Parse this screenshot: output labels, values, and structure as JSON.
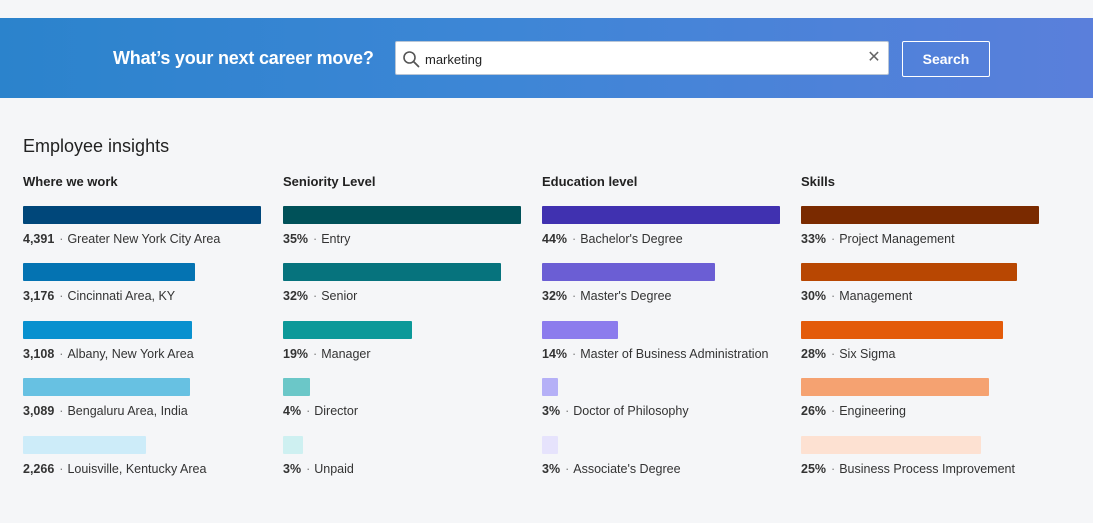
{
  "header": {
    "title": "What’s your next career move?",
    "search_value": "marketing",
    "search_placeholder": "",
    "clear_icon": "close-icon",
    "search_button_label": "Search"
  },
  "insights": {
    "title": "Employee insights",
    "columns": [
      {
        "header": "Where we work",
        "rows": [
          {
            "value": "4,391",
            "label": "Greater New York City Area",
            "fill": 1.0,
            "color": "#00477a"
          },
          {
            "value": "3,176",
            "label": "Cincinnati Area, KY",
            "fill": 0.723,
            "color": "#0473b2"
          },
          {
            "value": "3,108",
            "label": "Albany, New York Area",
            "fill": 0.708,
            "color": "#0991cf"
          },
          {
            "value": "3,089",
            "label": "Bengaluru Area, India",
            "fill": 0.703,
            "color": "#67c1e2"
          },
          {
            "value": "2,266",
            "label": "Louisville, Kentucky Area",
            "fill": 0.516,
            "color": "#cdecf9"
          }
        ]
      },
      {
        "header": "Seniority Level",
        "rows": [
          {
            "value": "35%",
            "label": "Entry",
            "fill": 1.0,
            "color": "#005159"
          },
          {
            "value": "32%",
            "label": "Senior",
            "fill": 0.914,
            "color": "#06737d"
          },
          {
            "value": "19%",
            "label": "Manager",
            "fill": 0.543,
            "color": "#0c9999"
          },
          {
            "value": "4%",
            "label": "Director",
            "fill": 0.114,
            "color": "#6bc7c8"
          },
          {
            "value": "3%",
            "label": "Unpaid",
            "fill": 0.086,
            "color": "#cef0f1"
          }
        ]
      },
      {
        "header": "Education level",
        "rows": [
          {
            "value": "44%",
            "label": "Bachelor's Degree",
            "fill": 1.0,
            "color": "#4031b0"
          },
          {
            "value": "32%",
            "label": "Master's Degree",
            "fill": 0.727,
            "color": "#6b5ed4"
          },
          {
            "value": "14%",
            "label": "Master of Business Administration",
            "fill": 0.318,
            "color": "#8c7ced"
          },
          {
            "value": "3%",
            "label": "Doctor of Philosophy",
            "fill": 0.068,
            "color": "#b5b0f7"
          },
          {
            "value": "3%",
            "label": "Associate's Degree",
            "fill": 0.068,
            "color": "#e6e3fc"
          }
        ]
      },
      {
        "header": "Skills",
        "rows": [
          {
            "value": "33%",
            "label": "Project Management",
            "fill": 1.0,
            "color": "#7a2a00"
          },
          {
            "value": "30%",
            "label": "Management",
            "fill": 0.909,
            "color": "#b84702"
          },
          {
            "value": "28%",
            "label": "Six Sigma",
            "fill": 0.848,
            "color": "#e35b0a"
          },
          {
            "value": "26%",
            "label": "Engineering",
            "fill": 0.788,
            "color": "#f5a271"
          },
          {
            "value": "25%",
            "label": "Business Process Improvement",
            "fill": 0.758,
            "color": "#fde1d2"
          }
        ]
      }
    ]
  }
}
